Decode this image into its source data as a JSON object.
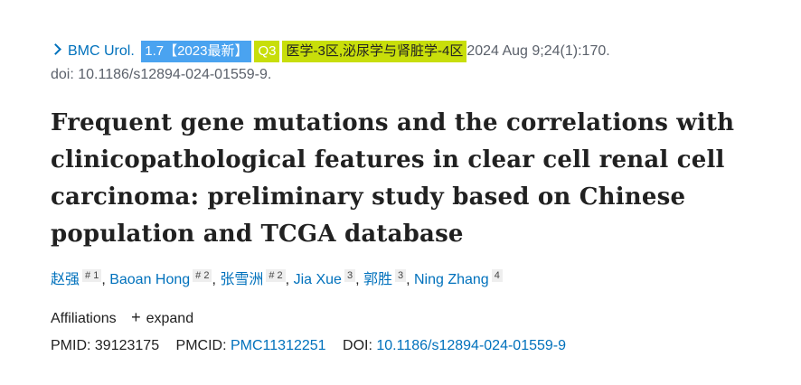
{
  "citation": {
    "journal": "BMC Urol.",
    "impact_factor_badge": "1.7【2023最新】",
    "quartile_badge": "Q3",
    "category_badge": "医学-3区,泌尿学与肾脏学-4区",
    "date_volume": "2024 Aug 9;24(1):170.",
    "doi_line": "doi: 10.1186/s12894-024-01559-9.",
    "badge_colors": {
      "if": "#4aa3f0",
      "quartile": "#c8de0a",
      "category": "#c8de0a"
    }
  },
  "title": "Frequent gene mutations and the correlations with clinicopathological features in clear cell renal cell carcinoma: preliminary study based on Chinese population and TCGA database",
  "authors": [
    {
      "name": "赵强",
      "marks": "# 1"
    },
    {
      "name": "Baoan Hong",
      "marks": "# 2"
    },
    {
      "name": "张雪洲",
      "marks": "# 2"
    },
    {
      "name": "Jia Xue",
      "marks": "3"
    },
    {
      "name": "郭胜",
      "marks": "3"
    },
    {
      "name": "Ning Zhang",
      "marks": "4"
    }
  ],
  "affiliations": {
    "label": "Affiliations",
    "expand_icon": "plus-icon",
    "expand_label": "expand"
  },
  "ids": {
    "pmid_label": "PMID:",
    "pmid": "39123175",
    "pmcid_label": "PMCID:",
    "pmcid": "PMC11312251",
    "doi_label": "DOI:",
    "doi": "10.1186/s12894-024-01559-9"
  }
}
